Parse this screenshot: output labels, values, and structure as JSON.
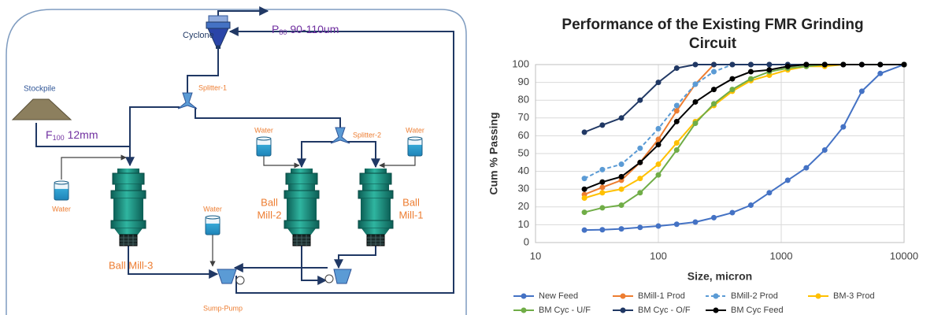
{
  "diagram": {
    "cyclone": "Cyclone",
    "product": {
      "symbol": "P",
      "subscript": "80",
      "text": "90-110um"
    },
    "stockpile": "Stockpile",
    "feed": {
      "symbol": "F",
      "subscript": "100",
      "text": "12mm"
    },
    "splitter_1": "Splitter-1",
    "splitter_2": "Splitter-2",
    "water": [
      "Water",
      "Water",
      "Water",
      "Water"
    ],
    "ball_mill_3": "Ball Mill-3",
    "ball_mill_2": [
      "Ball",
      "Mill-2"
    ],
    "ball_mill_1": [
      "Ball",
      "Mill-1"
    ],
    "sump_pump": "Sump-Pump"
  },
  "chart_data": {
    "type": "line",
    "title": "Performance of the Existing FMR Grinding Circuit",
    "x_label": "Size, micron",
    "y_label": "Cum % Passing",
    "xscale": "log",
    "xlim": [
      10,
      10000
    ],
    "xticks": [
      10,
      100,
      1000,
      10000
    ],
    "ylim": [
      0,
      100
    ],
    "yticks": [
      0,
      10,
      20,
      30,
      40,
      50,
      60,
      70,
      80,
      90,
      100
    ],
    "grid": true,
    "legend": "bottom",
    "x": [
      25,
      35,
      50,
      71,
      100,
      141,
      200,
      283,
      400,
      566,
      800,
      1130,
      1600,
      2260,
      3200,
      4530,
      6400,
      10000
    ],
    "series": [
      {
        "name": "New Feed",
        "color": "#4472c4",
        "dashed": false,
        "values": [
          7,
          7.2,
          7.7,
          8.5,
          9.3,
          10.3,
          11.5,
          14,
          16.8,
          21,
          28,
          35,
          42,
          52,
          65,
          85,
          95,
          100
        ]
      },
      {
        "name": "BMill-1  Prod",
        "color": "#ed7d31",
        "dashed": false,
        "values": [
          27,
          31,
          35,
          45,
          58,
          74,
          89,
          100,
          100,
          100,
          100,
          100,
          100,
          100,
          null,
          null,
          null,
          100
        ]
      },
      {
        "name": "BMill-2 Prod",
        "color": "#5b9bd5",
        "dashed": true,
        "values": [
          36,
          41,
          44,
          53,
          64,
          77,
          89,
          96,
          100,
          100,
          100,
          100,
          100,
          100,
          null,
          null,
          null,
          100
        ]
      },
      {
        "name": "BM-3 Prod",
        "color": "#ffc000",
        "dashed": false,
        "values": [
          25,
          28,
          30,
          36,
          44,
          56,
          68,
          77,
          85,
          91,
          94,
          97,
          99,
          99,
          100,
          null,
          null,
          100
        ]
      },
      {
        "name": "BM Cyc - U/F",
        "color": "#70ad47",
        "dashed": false,
        "values": [
          17,
          19.5,
          21,
          28,
          38,
          52,
          67,
          78,
          86,
          92,
          96,
          98,
          99,
          100,
          100,
          null,
          null,
          100
        ]
      },
      {
        "name": "BM Cyc - O/F",
        "color": "#203864",
        "dashed": false,
        "values": [
          62,
          66,
          70,
          80,
          90,
          98,
          100,
          100,
          100,
          100,
          100,
          100,
          100,
          100,
          100,
          100,
          100,
          100
        ]
      },
      {
        "name": "BM Cyc Feed",
        "color": "#000000",
        "dashed": false,
        "values": [
          30,
          34,
          37,
          45,
          55,
          68,
          79,
          86,
          92,
          96,
          97,
          99,
          100,
          100,
          100,
          100,
          100,
          100
        ]
      }
    ]
  }
}
